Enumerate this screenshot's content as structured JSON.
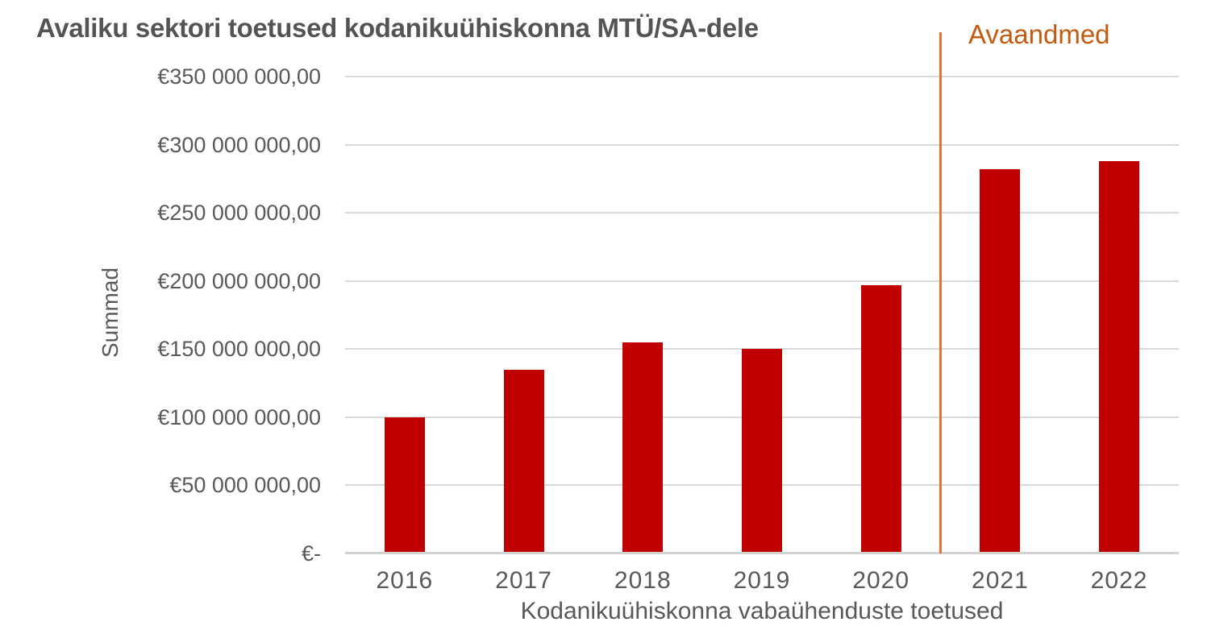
{
  "chart_data": {
    "type": "bar",
    "title": "Avaliku sektori toetused kodanikuühiskonna MTÜ/SA-dele",
    "xlabel": "Kodanikuühiskonna vabaühenduste toetused",
    "ylabel": "Summad",
    "categories": [
      "2016",
      "2017",
      "2018",
      "2019",
      "2020",
      "2021",
      "2022"
    ],
    "values": [
      100000000,
      135000000,
      155000000,
      150000000,
      197000000,
      282000000,
      288000000
    ],
    "ylim": [
      0,
      350000000
    ],
    "grid": true,
    "legend_position": "none",
    "y_ticks": [
      {
        "value": 350000000,
        "label": "€350 000 000,00"
      },
      {
        "value": 300000000,
        "label": "€300 000 000,00"
      },
      {
        "value": 250000000,
        "label": "€250 000 000,00"
      },
      {
        "value": 200000000,
        "label": "€200 000 000,00"
      },
      {
        "value": 150000000,
        "label": "€150 000 000,00"
      },
      {
        "value": 100000000,
        "label": "€100 000 000,00"
      },
      {
        "value": 50000000,
        "label": "€50 000 000,00"
      },
      {
        "value": 0,
        "label": "€-"
      }
    ],
    "annotation": {
      "label": "Avaandmed",
      "divider_between": [
        "2020",
        "2021"
      ]
    },
    "colors": {
      "bar": "#C00000",
      "divider_line": "#E97132",
      "annotation_text": "#C55A11",
      "gridline": "#D9D9D9",
      "axis_line": "#D2D2D2",
      "tick_text": "#595959",
      "title_text": "#545454"
    }
  }
}
